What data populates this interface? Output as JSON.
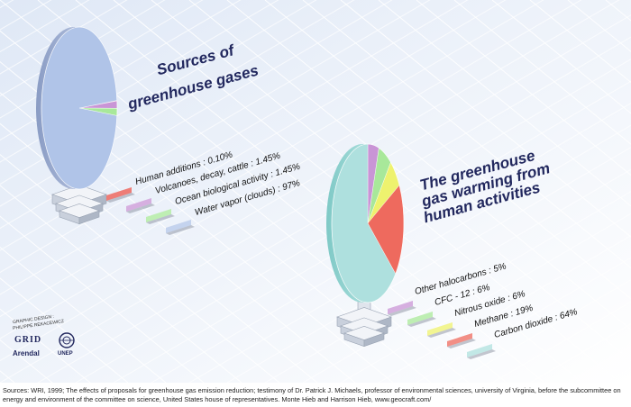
{
  "chart_data": [
    {
      "type": "pie",
      "title_lines": [
        "Sources of",
        "greenhouse gases"
      ],
      "categories": [
        "Human additions",
        "Volcanoes, decay, cattle",
        "Ocean biological activity",
        "Water vapor (clouds)"
      ],
      "values": [
        0.1,
        1.45,
        1.45,
        97
      ],
      "labels": [
        "Human additions : 0.10%",
        "Volcanoes, decay, cattle : 1.45%",
        "Ocean biological activity : 1.45%",
        "Water vapor (clouds) : 97%"
      ],
      "colors": [
        "#e8524a",
        "#c995d6",
        "#a8e89a",
        "#b0c4e8"
      ]
    },
    {
      "type": "pie",
      "title_lines": [
        "The greenhouse",
        "gas warming from",
        "human activities"
      ],
      "categories": [
        "Other halocarbons",
        "CFC - 12",
        "Nitrous oxide",
        "Methane",
        "Carbon dioxide"
      ],
      "values": [
        5,
        6,
        6,
        19,
        64
      ],
      "labels": [
        "Other halocarbons : 5%",
        "CFC - 12 : 6%",
        "Nitrous oxide : 6%",
        "Methane : 19%",
        "Carbon dioxide : 64%"
      ],
      "colors": [
        "#c995d6",
        "#a8e89a",
        "#eef26e",
        "#ee6a5e",
        "#aee0de"
      ]
    }
  ],
  "credits": {
    "graphic_design": "GRAPHIC DESIGN :",
    "designer": "PHILIPPE REKACEWICZ",
    "grid": "GRID",
    "arendal": "Arendal",
    "unep": "UNEP"
  },
  "sources": "Sources: WRI, 1999; The effects of proposals for greenhouse gas emission reduction; testimony of Dr. Patrick J. Michaels, professor of environmental sciences, university of Virginia, before the subcommittee on energy and environment of the committee on science, United States house of representatives. Monte Hieb and Harrison Hieb, www.geocraft.com/"
}
